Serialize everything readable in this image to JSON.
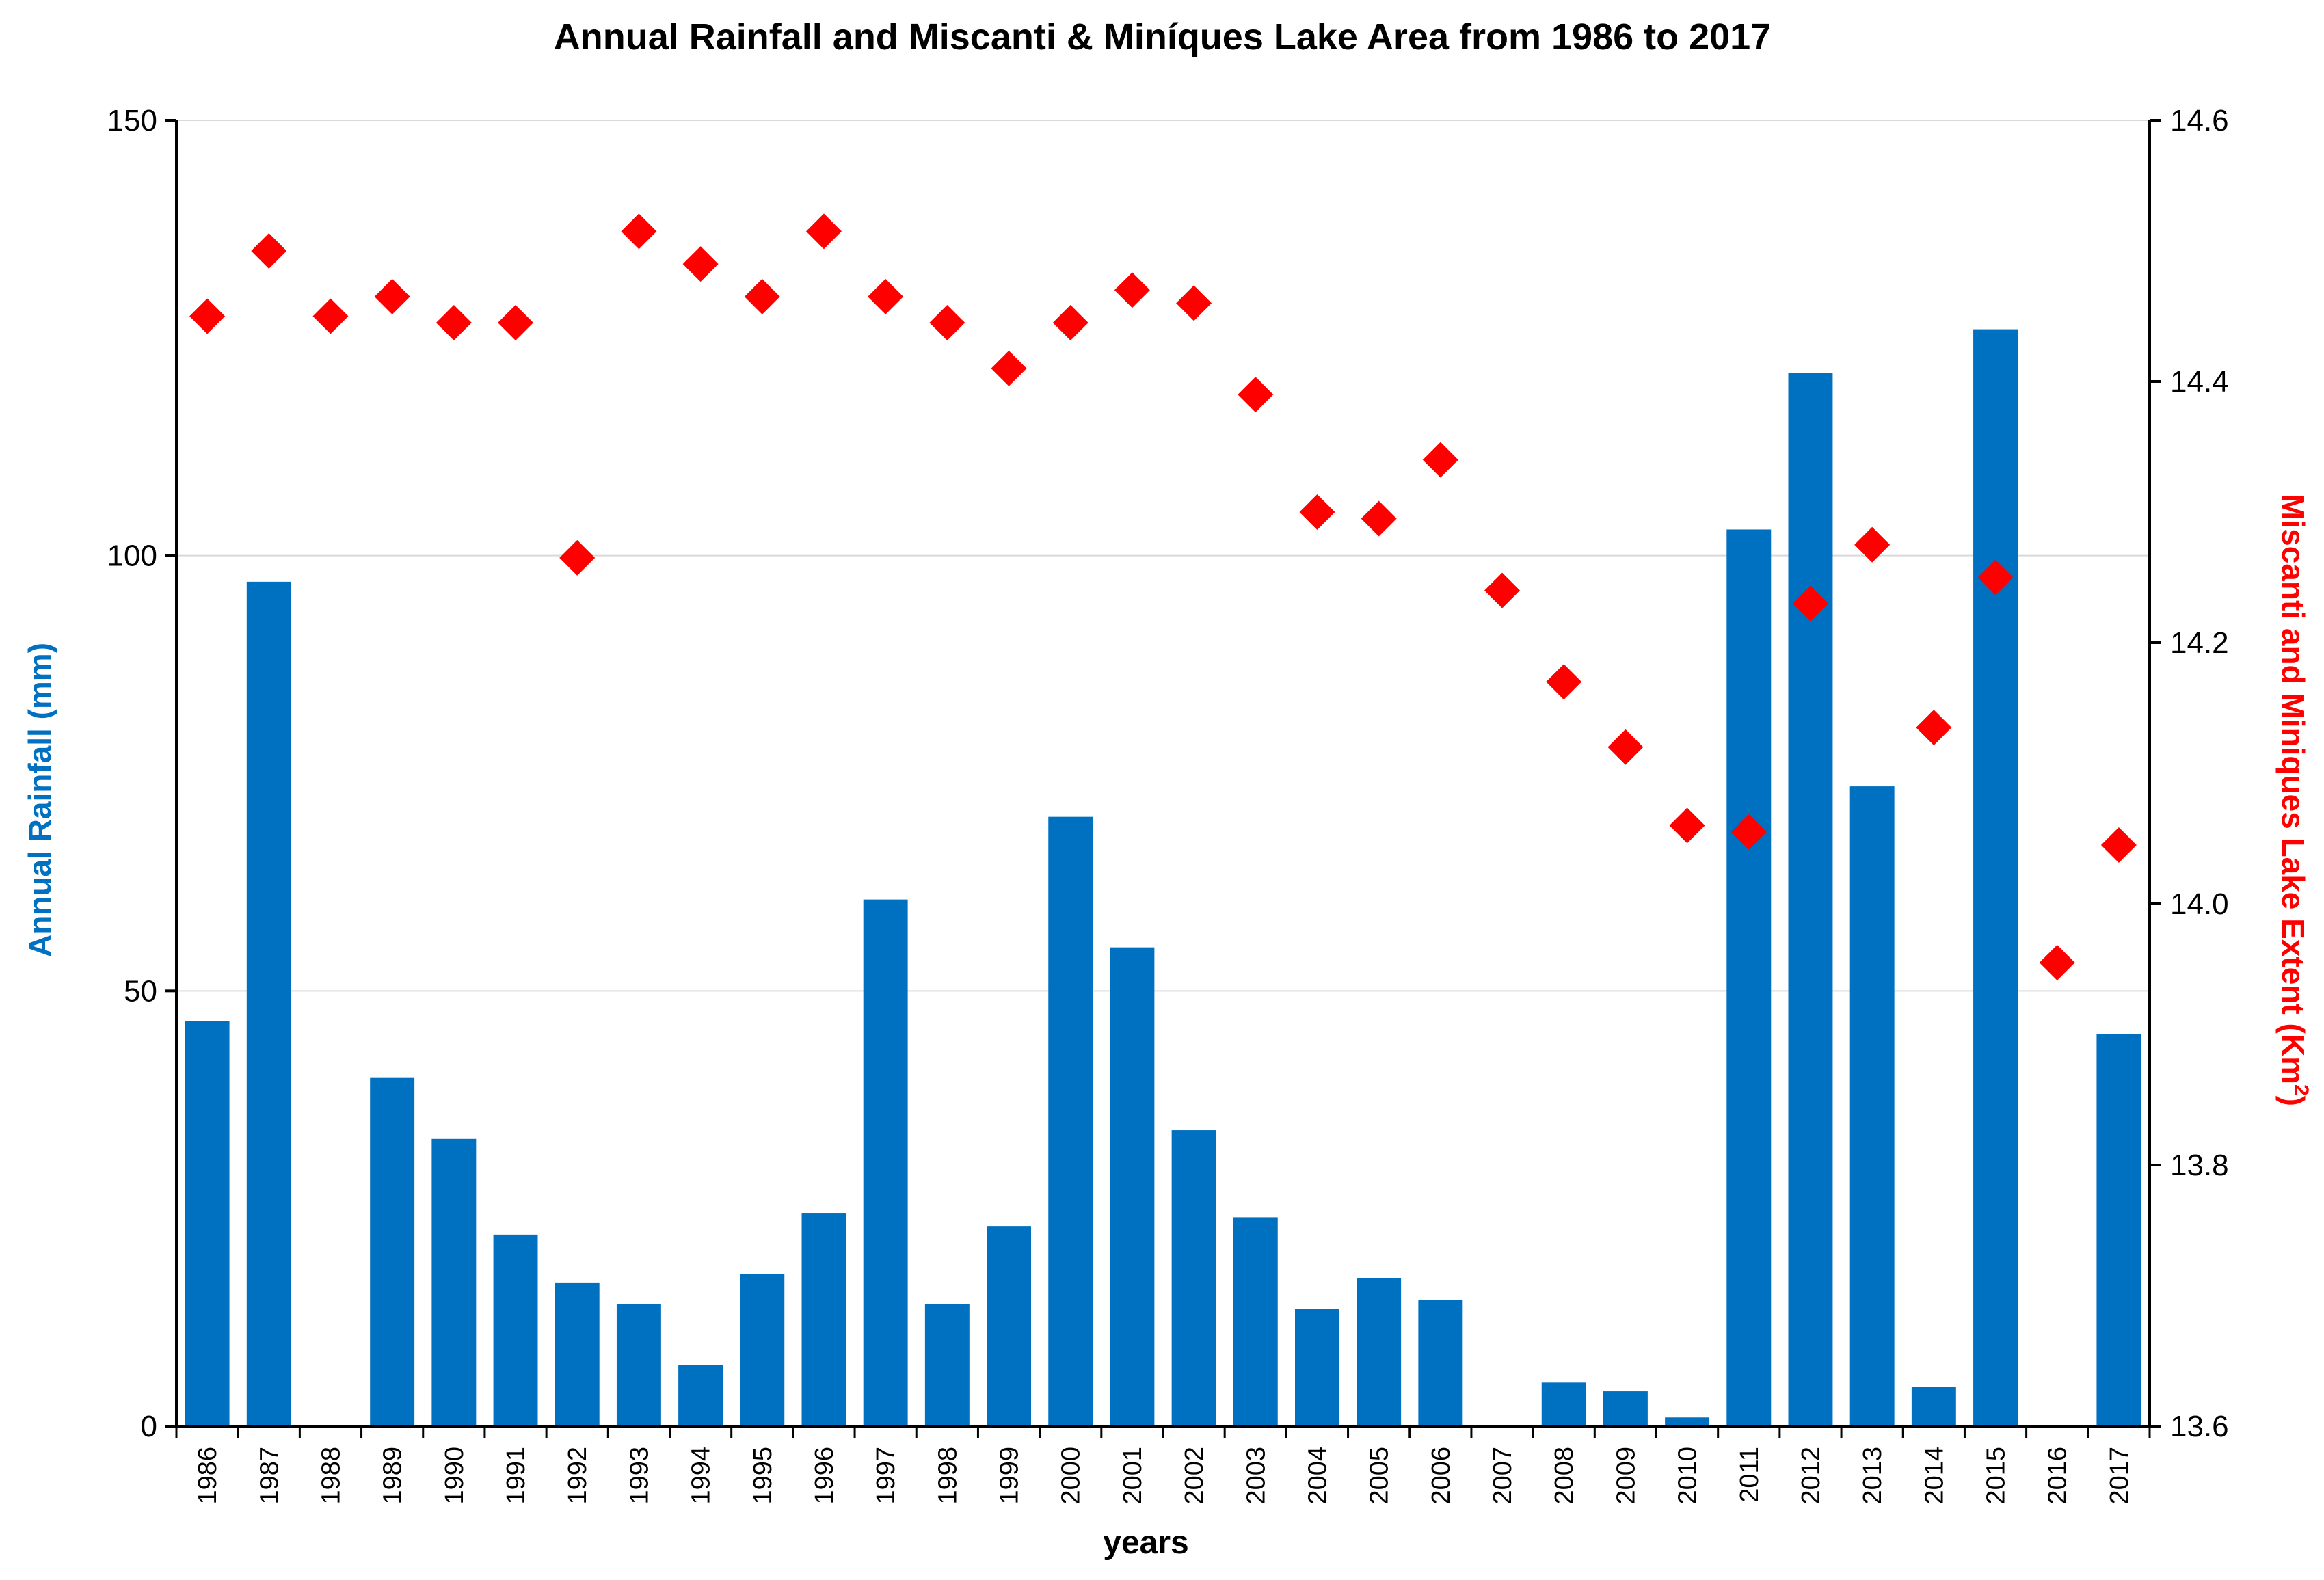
{
  "chart_data": {
    "type": "bar",
    "title": "Annual Rainfall and Miscanti & Miníques Lake Area from 1986 to 2017",
    "xlabel": "years",
    "ylabel": "Annual Rainfall (mm)",
    "y2label_main": "Miscanti and Miniques Lake Extent (Km",
    "y2label_sup": "2",
    "y2label_end": ")",
    "categories": [
      "1986",
      "1987",
      "1988",
      "1989",
      "1990",
      "1991",
      "1992",
      "1993",
      "1994",
      "1995",
      "1996",
      "1997",
      "1998",
      "1999",
      "2000",
      "2001",
      "2002",
      "2003",
      "2004",
      "2005",
      "2006",
      "2007",
      "2008",
      "2009",
      "2010",
      "2011",
      "2012",
      "2013",
      "2014",
      "2015",
      "2016",
      "2017"
    ],
    "series": [
      {
        "name": "Annual Rainfall (mm)",
        "type": "bar",
        "axis": "left",
        "color": "#0070C0",
        "values": [
          46.5,
          97,
          0,
          40,
          33,
          22,
          16.5,
          14,
          7,
          17.5,
          24.5,
          60.5,
          14,
          23,
          70,
          55,
          34,
          24,
          13.5,
          17,
          14.5,
          0,
          5,
          4,
          1,
          103,
          121,
          73.5,
          4.5,
          126,
          0,
          45
        ]
      },
      {
        "name": "Miscanti and Miniques Lake Extent (Km2)",
        "type": "scatter",
        "axis": "right",
        "color": "#FF0000",
        "marker": "diamond",
        "values": [
          14.45,
          14.5,
          14.45,
          14.465,
          14.445,
          14.445,
          14.265,
          14.515,
          14.49,
          14.465,
          14.515,
          14.465,
          14.445,
          14.41,
          14.445,
          14.47,
          14.46,
          14.39,
          14.3,
          14.295,
          14.34,
          14.24,
          14.17,
          14.12,
          14.06,
          14.055,
          14.23,
          14.275,
          14.135,
          14.25,
          13.955,
          14.045
        ]
      }
    ],
    "ylim": [
      0,
      150
    ],
    "yticks": [
      0,
      50,
      100,
      150
    ],
    "y2lim": [
      13.6,
      14.6
    ],
    "y2ticks": [
      "13.6",
      "13.8",
      "14.0",
      "14.2",
      "14.4",
      "14.6"
    ],
    "grid": true,
    "legend": "none",
    "colors": {
      "bar": "#0070C0",
      "marker": "#FF0000",
      "left_axis_title": "#0070C0",
      "right_axis_title": "#FF0000",
      "grid": "#D9D9D9",
      "axis": "#000000"
    }
  }
}
